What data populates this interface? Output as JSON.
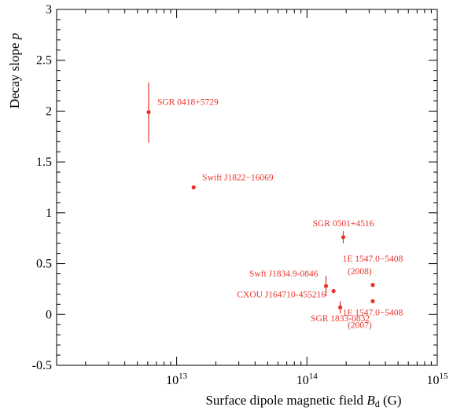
{
  "chart_data": {
    "type": "scatter",
    "xlabel": {
      "text": "Surface dipole magnetic field ",
      "var": "B",
      "sub": "d",
      "unit": " (G)"
    },
    "ylabel": {
      "text": "Decay slope ",
      "var": "p"
    },
    "x_scale": "log",
    "xlim": [
      1200000000000.0,
      1000000000000000.0
    ],
    "ylim": [
      -0.5,
      3.0
    ],
    "x_ticks": [
      {
        "value": 10000000000000.0,
        "base": "10",
        "exp": "13"
      },
      {
        "value": 100000000000000.0,
        "base": "10",
        "exp": "14"
      },
      {
        "value": 1000000000000000.0,
        "base": "10",
        "exp": "15"
      }
    ],
    "y_ticks": [
      {
        "value": -0.5,
        "label": "-0.5"
      },
      {
        "value": 0,
        "label": "0"
      },
      {
        "value": 0.5,
        "label": "0.5"
      },
      {
        "value": 1,
        "label": "1"
      },
      {
        "value": 1.5,
        "label": "1.5"
      },
      {
        "value": 2,
        "label": "2"
      },
      {
        "value": 2.5,
        "label": "2.5"
      },
      {
        "value": 3,
        "label": "3"
      }
    ],
    "point_color": "#e8332c",
    "points": [
      {
        "label": [
          "SGR 0418+5729"
        ],
        "x": 6100000000000.0,
        "y": 1.99,
        "yerr": [
          0.3,
          0.29
        ],
        "label_pos": "upper-right"
      },
      {
        "label": [
          "Swift J1822−16069"
        ],
        "x": 13500000000000.0,
        "y": 1.25,
        "yerr": [
          0.02,
          0.02
        ],
        "label_pos": "upper-right"
      },
      {
        "label": [
          "SGR 0501+4516"
        ],
        "x": 190000000000000.0,
        "y": 0.76,
        "yerr": [
          0.06,
          0.06
        ],
        "label_pos": "above"
      },
      {
        "label": [
          "Swft J1834.9-0846"
        ],
        "x": 140000000000000.0,
        "y": 0.28,
        "yerr": [
          0.1,
          0.1
        ],
        "label_pos": "upper-left"
      },
      {
        "label": [
          "CXOU J164710-455216"
        ],
        "x": 160000000000000.0,
        "y": 0.23,
        "yerr": [
          0.02,
          0.02
        ],
        "label_pos": "lower-left"
      },
      {
        "label": [
          "SGR 1833-0832"
        ],
        "x": 180000000000000.0,
        "y": 0.07,
        "yerr": [
          0.06,
          0.06
        ],
        "label_pos": "below"
      },
      {
        "label": [
          "1E 1547.0−5408",
          "(2008)"
        ],
        "x": 320000000000000.0,
        "y": 0.29,
        "yerr": [
          0.02,
          0.02
        ],
        "label_pos": "above"
      },
      {
        "label": [
          "1E 1547.0−5408",
          "(2007)"
        ],
        "x": 320000000000000.0,
        "y": 0.13,
        "yerr": [
          0.02,
          0.02
        ],
        "label_pos": "below"
      }
    ]
  }
}
